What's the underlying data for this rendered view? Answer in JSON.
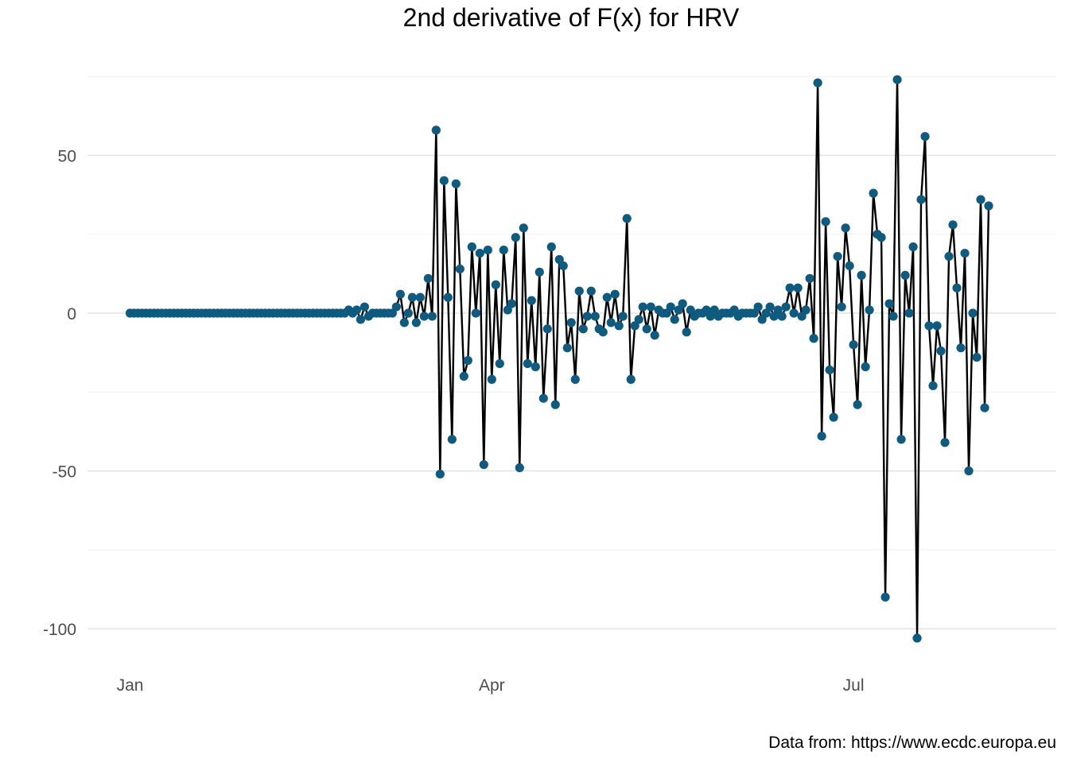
{
  "chart_data": {
    "type": "line",
    "title": "2nd derivative of F(x) for HRV",
    "caption": "Data from: https://www.ecdc.europa.eu",
    "xlabel": "",
    "ylabel": "",
    "x_start": "2020-01-01",
    "x_end": "2020-08-10",
    "x_ticks": [
      {
        "date": "2020-01-01",
        "label": "Jan"
      },
      {
        "date": "2020-04-01",
        "label": "Apr"
      },
      {
        "date": "2020-07-01",
        "label": "Jul"
      }
    ],
    "y_ticks": [
      {
        "value": 50,
        "label": "50"
      },
      {
        "value": 0,
        "label": "0"
      },
      {
        "value": -50,
        "label": "-50"
      },
      {
        "value": -100,
        "label": "-100"
      }
    ],
    "y_minor": [
      75,
      25,
      -25,
      -75
    ],
    "ylim": [
      -106,
      77
    ],
    "grid": true,
    "legend": "none",
    "colors": {
      "point": "#0f5a7f",
      "line": "#000000"
    },
    "series": [
      {
        "values": [
          0,
          0,
          0,
          0,
          0,
          0,
          0,
          0,
          0,
          0,
          0,
          0,
          0,
          0,
          0,
          0,
          0,
          0,
          0,
          0,
          0,
          0,
          0,
          0,
          0,
          0,
          0,
          0,
          0,
          0,
          0,
          0,
          0,
          0,
          0,
          0,
          0,
          0,
          0,
          0,
          0,
          0,
          0,
          0,
          0,
          0,
          0,
          0,
          0,
          0,
          0,
          0,
          0,
          0,
          0,
          1,
          0,
          1,
          -2,
          2,
          -1,
          0,
          0,
          0,
          0,
          0,
          0,
          2,
          6,
          -3,
          0,
          5,
          -3,
          5,
          -1,
          11,
          -1,
          58,
          -51,
          42,
          5,
          -40,
          41,
          14,
          -20,
          -15,
          21,
          0,
          19,
          -48,
          20,
          -21,
          9,
          -16,
          20,
          1,
          3,
          24,
          -49,
          27,
          -16,
          4,
          -17,
          13,
          -27,
          -5,
          21,
          -29,
          17,
          15,
          -11,
          -3,
          -21,
          7,
          -5,
          -1,
          7,
          -1,
          -5,
          -6,
          5,
          -3,
          6,
          -4,
          -1,
          30,
          -21,
          -4,
          -2,
          2,
          -5,
          2,
          -7,
          1,
          0,
          0,
          2,
          -2,
          1,
          3,
          -6,
          1,
          -1,
          0,
          0,
          1,
          -1,
          1,
          -1,
          0,
          0,
          0,
          1,
          -1,
          0,
          0,
          0,
          0,
          2,
          -2,
          0,
          2,
          -1,
          1,
          -1,
          2,
          8,
          0,
          8,
          -1,
          1,
          11,
          -8,
          73,
          -39,
          29,
          -18,
          -33,
          18,
          2,
          27,
          15,
          -10,
          -29,
          12,
          -17,
          1,
          38,
          25,
          24,
          -90,
          3,
          -1,
          74,
          -40,
          12,
          0,
          21,
          -103,
          36,
          56,
          -4,
          -23,
          -4,
          -12,
          -41,
          18,
          28,
          8,
          -11,
          19,
          -50,
          0,
          -14,
          36,
          -30,
          34
        ]
      }
    ]
  }
}
